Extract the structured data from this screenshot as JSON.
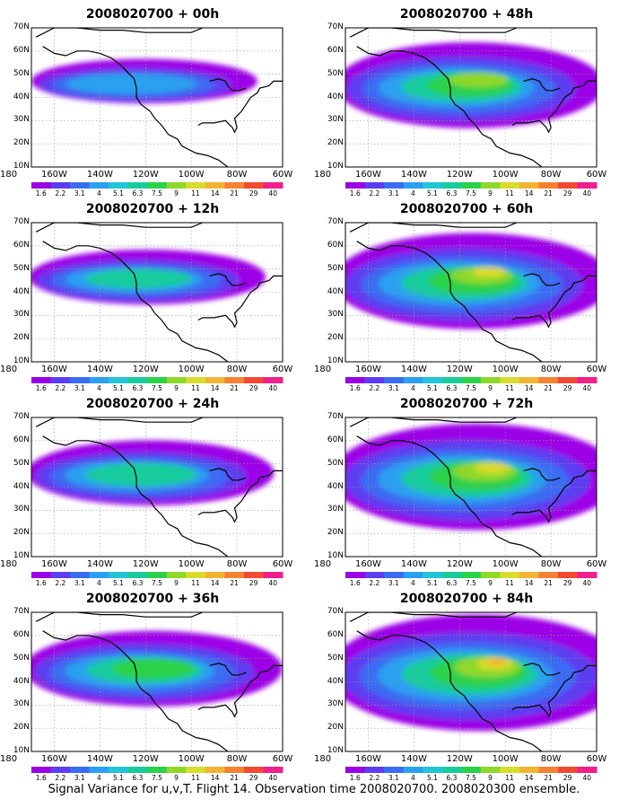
{
  "panels": [
    {
      "title": "2008020700 + 00h",
      "col": 0,
      "row": 0,
      "lead": 0
    },
    {
      "title": "2008020700 + 12h",
      "col": 0,
      "row": 1,
      "lead": 12
    },
    {
      "title": "2008020700 + 24h",
      "col": 0,
      "row": 2,
      "lead": 24
    },
    {
      "title": "2008020700 + 36h",
      "col": 0,
      "row": 3,
      "lead": 36
    },
    {
      "title": "2008020700 + 48h",
      "col": 1,
      "row": 0,
      "lead": 48
    },
    {
      "title": "2008020700 + 60h",
      "col": 1,
      "row": 1,
      "lead": 60
    },
    {
      "title": "2008020700 + 72h",
      "col": 1,
      "row": 2,
      "lead": 72
    },
    {
      "title": "2008020700 + 84h",
      "col": 1,
      "row": 3,
      "lead": 84
    }
  ],
  "lat_labels": [
    "10N",
    "20N",
    "30N",
    "40N",
    "50N",
    "60N",
    "70N"
  ],
  "lon_labels": [
    "180",
    "160W",
    "140W",
    "120W",
    "100W",
    "80W",
    "60W"
  ],
  "colorbar": {
    "labels": [
      "1.6",
      "2.2",
      "3.1",
      "4",
      "5.1",
      "6.3",
      "7.5",
      "9",
      "11",
      "14",
      "21",
      "29",
      "40"
    ],
    "colors": [
      "#9b00e6",
      "#5d3df0",
      "#3a6cf2",
      "#2aa0f0",
      "#24c4d8",
      "#18cc9c",
      "#2ad24a",
      "#8ed82a",
      "#d8dc2a",
      "#f2b432",
      "#f58232",
      "#f24a32",
      "#ef1f8c"
    ]
  },
  "caption": "Signal Variance for u,v,T. Flight 14. Observation time 2008020700. 2008020300 ensemble."
}
